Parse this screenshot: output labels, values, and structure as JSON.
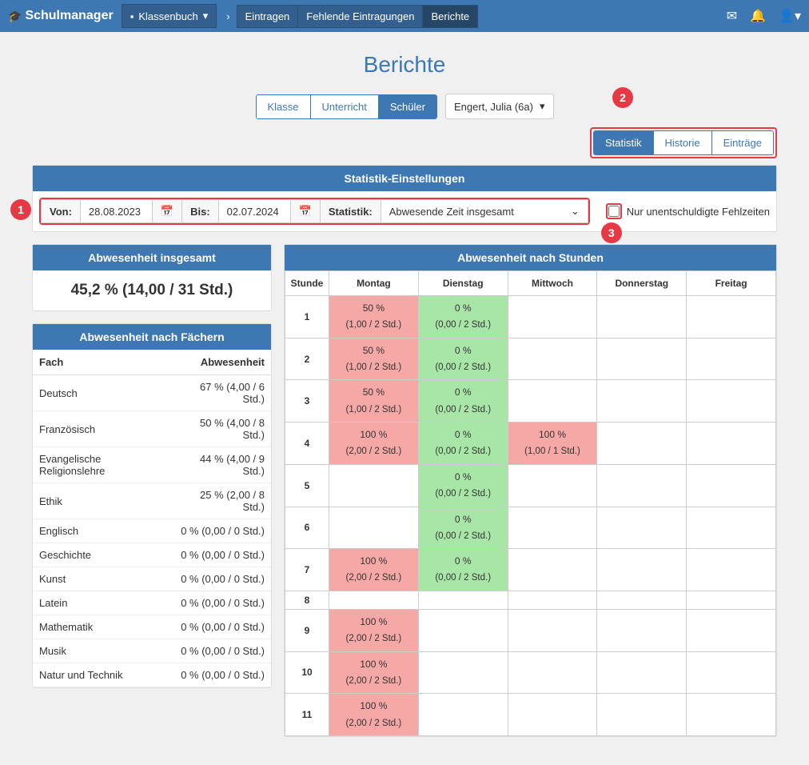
{
  "app": {
    "name": "Schulmanager"
  },
  "topnav": {
    "module": "Klassenbuch",
    "items": [
      "Eintragen",
      "Fehlende Eintragungen",
      "Berichte"
    ],
    "active_index": 2
  },
  "page_title": "Berichte",
  "view_tabs": {
    "items": [
      "Klasse",
      "Unterricht",
      "Schüler"
    ],
    "active_index": 2
  },
  "student": "Engert, Julia (6a)",
  "sub_tabs": {
    "items": [
      "Statistik",
      "Historie",
      "Einträge"
    ],
    "active_index": 0
  },
  "settings": {
    "panel_title": "Statistik-Einstellungen",
    "von_label": "Von:",
    "von_value": "28.08.2023",
    "bis_label": "Bis:",
    "bis_value": "02.07.2024",
    "stat_label": "Statistik:",
    "stat_value": "Abwesende Zeit insgesamt",
    "checkbox_label": "Nur unentschuldigte Fehlzeiten"
  },
  "callouts": {
    "n1": "1",
    "n2": "2",
    "n3": "3"
  },
  "total": {
    "title": "Abwesenheit insgesamt",
    "value": "45,2 % (14,00 / 31 Std.)"
  },
  "subjects": {
    "title": "Abwesenheit nach Fächern",
    "headers": [
      "Fach",
      "Abwesenheit"
    ],
    "rows": [
      {
        "name": "Deutsch",
        "val": "67 % (4,00 / 6 Std.)"
      },
      {
        "name": "Französisch",
        "val": "50 % (4,00 / 8 Std.)"
      },
      {
        "name": "Evangelische Religionslehre",
        "val": "44 % (4,00 / 9 Std.)"
      },
      {
        "name": "Ethik",
        "val": "25 % (2,00 / 8 Std.)"
      },
      {
        "name": "Englisch",
        "val": "0 % (0,00 / 0 Std.)"
      },
      {
        "name": "Geschichte",
        "val": "0 % (0,00 / 0 Std.)"
      },
      {
        "name": "Kunst",
        "val": "0 % (0,00 / 0 Std.)"
      },
      {
        "name": "Latein",
        "val": "0 % (0,00 / 0 Std.)"
      },
      {
        "name": "Mathematik",
        "val": "0 % (0,00 / 0 Std.)"
      },
      {
        "name": "Musik",
        "val": "0 % (0,00 / 0 Std.)"
      },
      {
        "name": "Natur und Technik",
        "val": "0 % (0,00 / 0 Std.)"
      }
    ]
  },
  "hours": {
    "title": "Abwesenheit nach Stunden",
    "col_hdr": "Stunde",
    "days": [
      "Montag",
      "Dienstag",
      "Mittwoch",
      "Donnerstag",
      "Freitag"
    ],
    "rows": [
      {
        "hour": "1",
        "cells": [
          {
            "pct": "50 %",
            "sub": "(1,00 / 2 Std.)",
            "cls": "red"
          },
          {
            "pct": "0 %",
            "sub": "(0,00 / 2 Std.)",
            "cls": "green"
          },
          null,
          null,
          null
        ]
      },
      {
        "hour": "2",
        "cells": [
          {
            "pct": "50 %",
            "sub": "(1,00 / 2 Std.)",
            "cls": "red"
          },
          {
            "pct": "0 %",
            "sub": "(0,00 / 2 Std.)",
            "cls": "green"
          },
          null,
          null,
          null
        ]
      },
      {
        "hour": "3",
        "cells": [
          {
            "pct": "50 %",
            "sub": "(1,00 / 2 Std.)",
            "cls": "red"
          },
          {
            "pct": "0 %",
            "sub": "(0,00 / 2 Std.)",
            "cls": "green"
          },
          null,
          null,
          null
        ]
      },
      {
        "hour": "4",
        "cells": [
          {
            "pct": "100 %",
            "sub": "(2,00 / 2 Std.)",
            "cls": "red"
          },
          {
            "pct": "0 %",
            "sub": "(0,00 / 2 Std.)",
            "cls": "green"
          },
          {
            "pct": "100 %",
            "sub": "(1,00 / 1 Std.)",
            "cls": "red"
          },
          null,
          null
        ]
      },
      {
        "hour": "5",
        "cells": [
          null,
          {
            "pct": "0 %",
            "sub": "(0,00 / 2 Std.)",
            "cls": "green"
          },
          null,
          null,
          null
        ]
      },
      {
        "hour": "6",
        "cells": [
          null,
          {
            "pct": "0 %",
            "sub": "(0,00 / 2 Std.)",
            "cls": "green"
          },
          null,
          null,
          null
        ]
      },
      {
        "hour": "7",
        "cells": [
          {
            "pct": "100 %",
            "sub": "(2,00 / 2 Std.)",
            "cls": "red"
          },
          {
            "pct": "0 %",
            "sub": "(0,00 / 2 Std.)",
            "cls": "green"
          },
          null,
          null,
          null
        ]
      },
      {
        "hour": "8",
        "cells": [
          null,
          null,
          null,
          null,
          null
        ]
      },
      {
        "hour": "9",
        "cells": [
          {
            "pct": "100 %",
            "sub": "(2,00 / 2 Std.)",
            "cls": "red"
          },
          null,
          null,
          null,
          null
        ]
      },
      {
        "hour": "10",
        "cells": [
          {
            "pct": "100 %",
            "sub": "(2,00 / 2 Std.)",
            "cls": "red"
          },
          null,
          null,
          null,
          null
        ]
      },
      {
        "hour": "11",
        "cells": [
          {
            "pct": "100 %",
            "sub": "(2,00 / 2 Std.)",
            "cls": "red"
          },
          null,
          null,
          null,
          null
        ]
      }
    ]
  },
  "colors": {
    "brand": "#3e78b2",
    "callout": "#e63946",
    "cell_red": "#f5a8a5",
    "cell_green": "#a8e6a8"
  }
}
